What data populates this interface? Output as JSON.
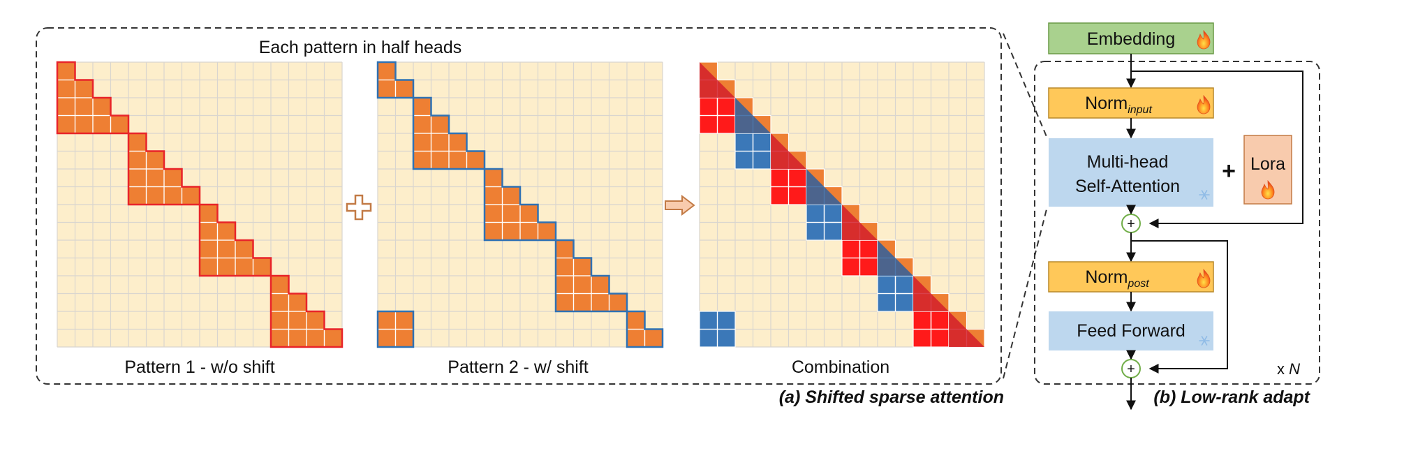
{
  "panel_a": {
    "header": "Each pattern in half heads",
    "caption": "(a) Shifted sparse attention",
    "pattern1": {
      "label": "Pattern 1 - w/o shift"
    },
    "pattern2": {
      "label": "Pattern 2 - w/ shift"
    },
    "combination": {
      "label": "Combination"
    },
    "grid_size": 16,
    "block_size": 4,
    "colors": {
      "background_cell": "#fdeecb",
      "grid_line": "#d9d5cf",
      "attention_cell": "#ee7f33",
      "pattern1_outline": "#e8242a",
      "pattern2_outline": "#2f72b5",
      "combo_red": "#ff1a1a",
      "combo_red_dark": "#d21f2b",
      "combo_blue": "#3b78b8",
      "combo_blue_dark": "#2f5f9e"
    }
  },
  "panel_b": {
    "caption": "(b) Low-rank adapt",
    "embedding": {
      "label": "Embedding",
      "icon": "flame-icon"
    },
    "norm_input": {
      "label": "Norm",
      "sub": "input",
      "icon": "flame-icon"
    },
    "attention": {
      "line1": "Multi-head",
      "line2": "Self-Attention",
      "icon": "snowflake-icon"
    },
    "lora": {
      "label": "Lora",
      "icon": "flame-icon"
    },
    "norm_post": {
      "label": "Norm",
      "sub": "post",
      "icon": "flame-icon"
    },
    "feed_forward": {
      "label": "Feed Forward",
      "icon": "snowflake-icon"
    },
    "repeat": {
      "prefix": "x",
      "var": "N"
    },
    "add_symbol": "+",
    "plus_symbol": "+",
    "colors": {
      "embedding": "#a9d18e",
      "norm": "#ffc859",
      "attention": "#bdd7ee",
      "lora": "#f8cbad",
      "residual": "#70ad47"
    }
  }
}
